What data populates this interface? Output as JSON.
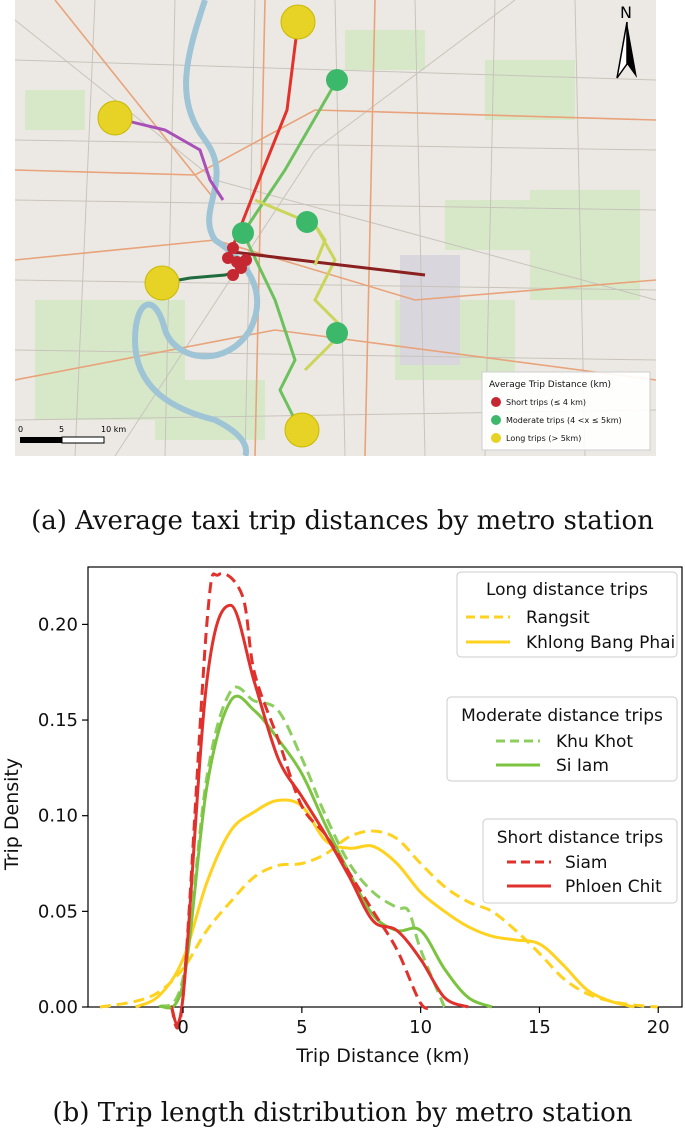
{
  "map": {
    "north_label": "N",
    "legend_title": "Average Trip Distance (km)",
    "legend_items": [
      {
        "label": "Short trips (≤ 4 km)",
        "color": "#c62832"
      },
      {
        "label": "Moderate trips (4 <x ≤ 5km)",
        "color": "#3cb86a"
      },
      {
        "label": "Long trips (> 5km)",
        "color": "#e6d325"
      }
    ],
    "scale_labels": [
      "0",
      "5",
      "10 km"
    ],
    "caption": "(a) Average taxi trip distances by metro station"
  },
  "chart_data": {
    "type": "line",
    "xlabel": "Trip Distance (km)",
    "ylabel": "Trip Density",
    "xlim": [
      -4,
      21
    ],
    "ylim": [
      0,
      0.23
    ],
    "xticks": [
      0,
      5,
      10,
      15,
      20
    ],
    "yticks": [
      0.0,
      0.05,
      0.1,
      0.15,
      0.2
    ],
    "ytick_labels": [
      "0.00",
      "0.05",
      "0.10",
      "0.15",
      "0.20"
    ],
    "legend_groups": [
      {
        "title": "Long distance trips",
        "placement": "top-right",
        "entries": [
          "Rangsit",
          "Khlong Bang Phai"
        ]
      },
      {
        "title": "Moderate distance trips",
        "placement": "right",
        "entries": [
          "Khu Khot",
          "Si Iam"
        ]
      },
      {
        "title": "Short distance trips",
        "placement": "right",
        "entries": [
          "Siam",
          "Phloen Chit"
        ]
      }
    ],
    "series": [
      {
        "name": "Rangsit",
        "color": "#ffd21f",
        "dashed": true,
        "points": [
          [
            -3.5,
            0
          ],
          [
            -2,
            0.003
          ],
          [
            -1,
            0.008
          ],
          [
            0,
            0.02
          ],
          [
            1,
            0.04
          ],
          [
            2,
            0.055
          ],
          [
            3,
            0.068
          ],
          [
            4,
            0.074
          ],
          [
            5,
            0.075
          ],
          [
            6,
            0.08
          ],
          [
            7,
            0.089
          ],
          [
            8,
            0.092
          ],
          [
            9,
            0.088
          ],
          [
            10,
            0.075
          ],
          [
            11,
            0.063
          ],
          [
            12,
            0.055
          ],
          [
            13,
            0.05
          ],
          [
            14,
            0.04
          ],
          [
            15,
            0.028
          ],
          [
            16,
            0.015
          ],
          [
            17,
            0.007
          ],
          [
            18,
            0.003
          ],
          [
            19,
            0.001
          ],
          [
            20,
            0
          ]
        ]
      },
      {
        "name": "Khlong Bang Phai",
        "color": "#ffd21f",
        "dashed": false,
        "points": [
          [
            -2,
            0
          ],
          [
            -1,
            0.006
          ],
          [
            0,
            0.025
          ],
          [
            1,
            0.065
          ],
          [
            2,
            0.092
          ],
          [
            3,
            0.102
          ],
          [
            4,
            0.108
          ],
          [
            5,
            0.105
          ],
          [
            6,
            0.087
          ],
          [
            7,
            0.083
          ],
          [
            8,
            0.084
          ],
          [
            9,
            0.075
          ],
          [
            10,
            0.06
          ],
          [
            11,
            0.05
          ],
          [
            12,
            0.042
          ],
          [
            13,
            0.037
          ],
          [
            14,
            0.035
          ],
          [
            15,
            0.033
          ],
          [
            16,
            0.022
          ],
          [
            17,
            0.009
          ],
          [
            18,
            0.003
          ],
          [
            19,
            0
          ]
        ]
      },
      {
        "name": "Khu Khot",
        "color": "#8ccf5e",
        "dashed": true,
        "points": [
          [
            -1,
            0
          ],
          [
            0,
            0.015
          ],
          [
            1,
            0.12
          ],
          [
            2,
            0.165
          ],
          [
            3,
            0.16
          ],
          [
            4,
            0.155
          ],
          [
            5,
            0.13
          ],
          [
            6,
            0.1
          ],
          [
            7,
            0.075
          ],
          [
            8,
            0.06
          ],
          [
            9,
            0.052
          ],
          [
            9.5,
            0.05
          ],
          [
            10,
            0.03
          ],
          [
            11,
            0
          ]
        ]
      },
      {
        "name": "Si Iam",
        "color": "#7cc440",
        "dashed": false,
        "points": [
          [
            -1,
            0
          ],
          [
            0,
            0.012
          ],
          [
            1,
            0.115
          ],
          [
            2,
            0.16
          ],
          [
            3,
            0.155
          ],
          [
            4,
            0.14
          ],
          [
            5,
            0.122
          ],
          [
            6,
            0.095
          ],
          [
            7,
            0.07
          ],
          [
            8,
            0.048
          ],
          [
            9,
            0.04
          ],
          [
            10,
            0.04
          ],
          [
            11,
            0.02
          ],
          [
            12,
            0.005
          ],
          [
            13,
            0
          ]
        ]
      },
      {
        "name": "Siam",
        "color": "#e0312c",
        "dashed": true,
        "points": [
          [
            -0.5,
            0
          ],
          [
            0,
            0.005
          ],
          [
            1,
            0.2
          ],
          [
            1.5,
            0.226
          ],
          [
            2.5,
            0.215
          ],
          [
            3,
            0.175
          ],
          [
            4,
            0.14
          ],
          [
            5,
            0.105
          ],
          [
            6,
            0.09
          ],
          [
            7,
            0.07
          ],
          [
            8,
            0.05
          ],
          [
            9,
            0.03
          ],
          [
            10,
            0.002
          ],
          [
            10.5,
            0
          ]
        ]
      },
      {
        "name": "Phloen Chit",
        "color": "#e0312c",
        "dashed": false,
        "points": [
          [
            -0.5,
            0
          ],
          [
            0,
            0.005
          ],
          [
            1,
            0.17
          ],
          [
            2,
            0.21
          ],
          [
            3,
            0.17
          ],
          [
            4,
            0.13
          ],
          [
            5,
            0.11
          ],
          [
            6,
            0.09
          ],
          [
            7,
            0.068
          ],
          [
            8,
            0.045
          ],
          [
            9,
            0.04
          ],
          [
            10,
            0.025
          ],
          [
            11,
            0.005
          ],
          [
            12,
            0
          ]
        ]
      }
    ]
  },
  "chart_caption": "(b) Trip length distribution by metro station"
}
